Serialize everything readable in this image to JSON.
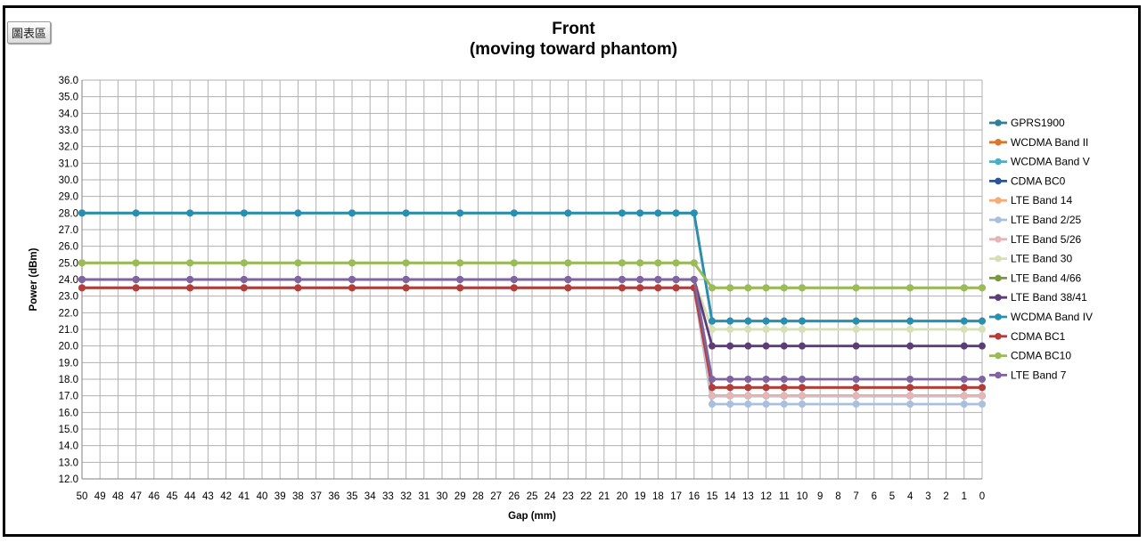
{
  "toolbar": {
    "badge_label": "圖表區"
  },
  "chart_data": {
    "type": "line",
    "title": "Front",
    "subtitle": "(moving toward phantom)",
    "xlabel": "Gap (mm)",
    "ylabel": "Power (dBm)",
    "ylim": [
      12.0,
      36.0
    ],
    "ytick_step": 1.0,
    "grid": true,
    "legend_position": "right",
    "x": [
      50,
      49,
      48,
      47,
      46,
      45,
      44,
      43,
      42,
      41,
      40,
      39,
      38,
      37,
      36,
      35,
      34,
      33,
      32,
      31,
      30,
      29,
      28,
      27,
      26,
      25,
      24,
      23,
      22,
      21,
      20,
      19,
      18,
      17,
      16,
      15,
      14,
      13,
      12,
      11,
      10,
      9,
      8,
      7,
      6,
      5,
      4,
      3,
      2,
      1,
      0
    ],
    "marker_x": [
      50,
      47,
      44,
      41,
      38,
      35,
      32,
      29,
      26,
      23,
      20,
      19,
      18,
      17,
      16,
      15,
      14,
      13,
      12,
      11,
      10,
      7,
      4,
      1,
      0
    ],
    "series": [
      {
        "name": "GPRS1900",
        "color": "#2e8099",
        "before": 28.0,
        "after": 21.5
      },
      {
        "name": "WCDMA Band II",
        "color": "#d9772c",
        "before": 23.5,
        "after": 17.5
      },
      {
        "name": "WCDMA Band V",
        "color": "#4fadc4",
        "before": 23.5,
        "after": 17.0
      },
      {
        "name": "CDMA BC0",
        "color": "#2c5591",
        "before": 23.5,
        "after": 17.0
      },
      {
        "name": "LTE Band 14",
        "color": "#f3ad7a",
        "before": 23.5,
        "after": 17.5
      },
      {
        "name": "LTE Band 2/25",
        "color": "#a8c0dd",
        "before": 23.5,
        "after": 16.5
      },
      {
        "name": "LTE Band 5/26",
        "color": "#e8b5b5",
        "before": 23.5,
        "after": 17.0
      },
      {
        "name": "LTE Band 30",
        "color": "#d6e0b5",
        "before": 24.0,
        "after": 21.0
      },
      {
        "name": "LTE Band 4/66",
        "color": "#7a9a3a",
        "before": 25.0,
        "after": 23.5
      },
      {
        "name": "LTE Band 38/41",
        "color": "#5c3d78",
        "before": 24.0,
        "after": 20.0
      },
      {
        "name": "WCDMA Band IV",
        "color": "#2a8fae",
        "before": 28.0,
        "after": 21.5
      },
      {
        "name": "CDMA BC1",
        "color": "#b03f3b",
        "before": 23.5,
        "after": 17.5
      },
      {
        "name": "CDMA BC10",
        "color": "#9bbb59",
        "before": 25.0,
        "after": 23.5
      },
      {
        "name": "LTE Band 7",
        "color": "#8064a2",
        "before": 24.0,
        "after": 18.0
      }
    ]
  }
}
